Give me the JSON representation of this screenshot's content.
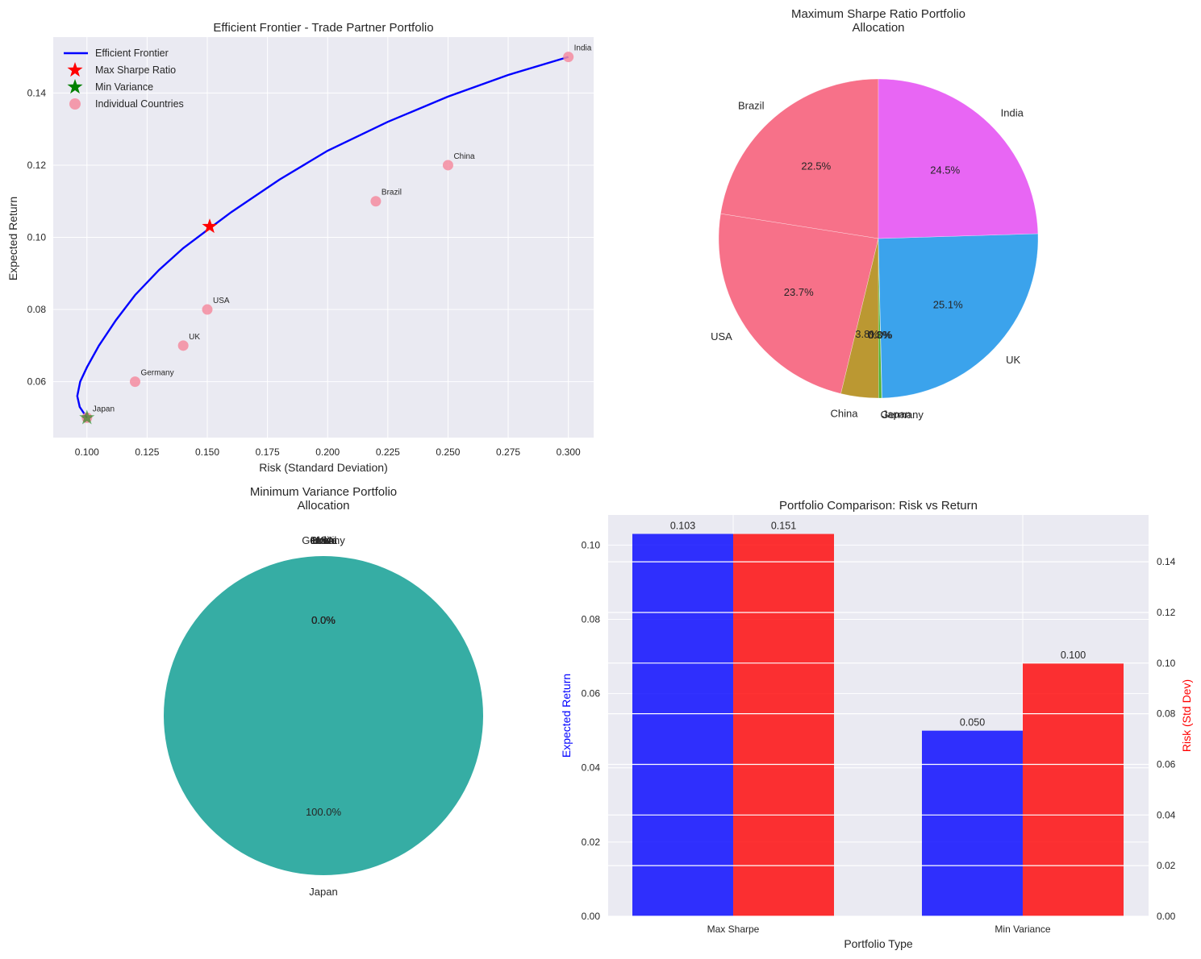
{
  "chart_data": [
    {
      "type": "line",
      "title": "Efficient Frontier - Trade Partner Portfolio",
      "xlabel": "Risk (Standard Deviation)",
      "ylabel": "Expected Return",
      "xlim": [
        0.086,
        0.3105
      ],
      "ylim": [
        0.0445,
        0.1555
      ],
      "xticks": [
        "0.100",
        "0.125",
        "0.150",
        "0.175",
        "0.200",
        "0.225",
        "0.250",
        "0.275",
        "0.300"
      ],
      "yticks": [
        "0.06",
        "0.08",
        "0.10",
        "0.12",
        "0.14"
      ],
      "grid": true,
      "legend": {
        "placement": "top-left",
        "entries": [
          "Efficient Frontier",
          "Max Sharpe Ratio",
          "Min Variance",
          "Individual Countries"
        ]
      },
      "frontier": {
        "name": "Efficient Frontier",
        "color": "#0000ff",
        "points": [
          [
            0.1,
            0.05
          ],
          [
            0.097,
            0.053
          ],
          [
            0.096,
            0.056
          ],
          [
            0.0972,
            0.06
          ],
          [
            0.1,
            0.064
          ],
          [
            0.105,
            0.07
          ],
          [
            0.112,
            0.077
          ],
          [
            0.12,
            0.084
          ],
          [
            0.13,
            0.091
          ],
          [
            0.14,
            0.097
          ],
          [
            0.15,
            0.102
          ],
          [
            0.16,
            0.107
          ],
          [
            0.18,
            0.116
          ],
          [
            0.2,
            0.124
          ],
          [
            0.225,
            0.132
          ],
          [
            0.25,
            0.139
          ],
          [
            0.275,
            0.145
          ],
          [
            0.3,
            0.15
          ]
        ]
      },
      "max_sharpe": {
        "name": "Max Sharpe Ratio",
        "x": 0.151,
        "y": 0.103,
        "color": "#ff0000"
      },
      "min_variance": {
        "name": "Min Variance",
        "x": 0.1,
        "y": 0.05,
        "color": "#008000"
      },
      "countries": {
        "name": "Individual Countries",
        "color": "#f48ca0",
        "points": [
          {
            "label": "India",
            "x": 0.3,
            "y": 0.15
          },
          {
            "label": "China",
            "x": 0.25,
            "y": 0.12
          },
          {
            "label": "Brazil",
            "x": 0.22,
            "y": 0.11
          },
          {
            "label": "USA",
            "x": 0.15,
            "y": 0.08
          },
          {
            "label": "UK",
            "x": 0.14,
            "y": 0.07
          },
          {
            "label": "Germany",
            "x": 0.12,
            "y": 0.06
          },
          {
            "label": "Japan",
            "x": 0.1,
            "y": 0.05
          }
        ]
      }
    },
    {
      "type": "pie",
      "title": "Maximum Sharpe Ratio Portfolio\nAllocation",
      "slices": [
        {
          "label": "Brazil",
          "pct": "22.5%",
          "value": 22.5,
          "color": "#f77189"
        },
        {
          "label": "USA",
          "pct": "23.7%",
          "value": 23.7,
          "color": "#f77189"
        },
        {
          "label": "China",
          "pct": "3.8%",
          "value": 3.8,
          "color": "#bb9832"
        },
        {
          "label": "Germany",
          "pct": "0.3%",
          "value": 0.3,
          "color": "#50b131"
        },
        {
          "label": "Japan",
          "pct": "0.0%",
          "value": 0.04,
          "color": "#36ada4"
        },
        {
          "label": "UK",
          "pct": "25.1%",
          "value": 25.1,
          "color": "#3ba3ec"
        },
        {
          "label": "India",
          "pct": "24.5%",
          "value": 24.5,
          "color": "#e866f4"
        }
      ]
    },
    {
      "type": "pie",
      "title": "Minimum Variance Portfolio\nAllocation",
      "slices": [
        {
          "label": "Brazil",
          "pct": "0.0%",
          "value": 0,
          "color": "#f77189"
        },
        {
          "label": "USA",
          "pct": "0.0%",
          "value": 0,
          "color": "#f77189"
        },
        {
          "label": "China",
          "pct": "0.0%",
          "value": 0,
          "color": "#bb9832"
        },
        {
          "label": "Germany",
          "pct": "0.0%",
          "value": 0,
          "color": "#50b131"
        },
        {
          "label": "India",
          "pct": "0.0%",
          "value": 0,
          "color": "#e866f4"
        },
        {
          "label": "UK",
          "pct": "0.0%",
          "value": 0,
          "color": "#3ba3ec"
        },
        {
          "label": "Japan",
          "pct": "100.0%",
          "value": 100,
          "color": "#36ada4"
        }
      ]
    },
    {
      "type": "bar",
      "title": "Portfolio Comparison: Risk vs Return",
      "xlabel": "Portfolio Type",
      "categories": [
        "Max Sharpe",
        "Min Variance"
      ],
      "series": [
        {
          "name": "Expected Return",
          "axis": "left",
          "values": [
            0.103,
            0.05
          ],
          "labels": [
            "0.103",
            "0.050"
          ],
          "color": "#0000ff"
        },
        {
          "name": "Risk (Std Dev)",
          "axis": "right",
          "values": [
            0.151,
            0.1
          ],
          "labels": [
            "0.151",
            "0.100"
          ],
          "color": "#ff0000"
        }
      ],
      "ylabel_left": "Expected Return",
      "ylabel_right": "Risk (Std Dev)",
      "ylim_left": [
        0,
        0.1081
      ],
      "ylim_right": [
        0,
        0.1585
      ],
      "yticks_left": [
        "0.00",
        "0.02",
        "0.04",
        "0.06",
        "0.08",
        "0.10"
      ],
      "yticks_right": [
        "0.00",
        "0.02",
        "0.04",
        "0.06",
        "0.08",
        "0.10",
        "0.12",
        "0.14"
      ],
      "grid": true
    }
  ]
}
